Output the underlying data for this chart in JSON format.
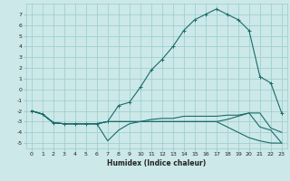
{
  "xlabel": "Humidex (Indice chaleur)",
  "bg_color": "#cce8e8",
  "grid_color": "#99cccc",
  "line_color": "#1a6b6b",
  "xlim": [
    -0.5,
    23.5
  ],
  "ylim": [
    -5.5,
    8.0
  ],
  "xticks": [
    0,
    1,
    2,
    3,
    4,
    5,
    6,
    7,
    8,
    9,
    10,
    11,
    12,
    13,
    14,
    15,
    16,
    17,
    18,
    19,
    20,
    21,
    22,
    23
  ],
  "yticks": [
    -5,
    -4,
    -3,
    -2,
    -1,
    0,
    1,
    2,
    3,
    4,
    5,
    6,
    7
  ],
  "series1_x": [
    0,
    1,
    2,
    3,
    4,
    5,
    6,
    7,
    8,
    9,
    10,
    11,
    12,
    13,
    14,
    15,
    16,
    17,
    18,
    19,
    20,
    21,
    22,
    23
  ],
  "series1_y": [
    -2.0,
    -2.3,
    -3.1,
    -3.2,
    -3.2,
    -3.2,
    -3.2,
    -3.0,
    -1.5,
    -1.2,
    0.2,
    1.8,
    2.8,
    4.0,
    5.5,
    6.5,
    7.0,
    7.5,
    7.0,
    6.5,
    5.5,
    1.2,
    0.6,
    -2.2
  ],
  "series2_x": [
    0,
    1,
    2,
    3,
    4,
    5,
    6,
    7,
    8,
    9,
    10,
    11,
    12,
    13,
    14,
    15,
    16,
    17,
    18,
    19,
    20,
    21,
    22,
    23
  ],
  "series2_y": [
    -2.0,
    -2.3,
    -3.1,
    -3.2,
    -3.2,
    -3.2,
    -3.2,
    -4.8,
    -3.8,
    -3.2,
    -3.0,
    -2.8,
    -2.7,
    -2.7,
    -2.5,
    -2.5,
    -2.5,
    -2.5,
    -2.4,
    -2.4,
    -2.2,
    -2.2,
    -3.6,
    -4.0
  ],
  "series3_x": [
    0,
    1,
    2,
    3,
    4,
    5,
    6,
    7,
    8,
    9,
    10,
    11,
    12,
    13,
    14,
    15,
    16,
    17,
    18,
    19,
    20,
    21,
    22,
    23
  ],
  "series3_y": [
    -2.0,
    -2.3,
    -3.1,
    -3.2,
    -3.2,
    -3.2,
    -3.2,
    -3.0,
    -3.0,
    -3.0,
    -3.0,
    -3.0,
    -3.0,
    -3.0,
    -3.0,
    -3.0,
    -3.0,
    -3.0,
    -2.8,
    -2.5,
    -2.2,
    -3.5,
    -3.8,
    -5.0
  ],
  "series4_x": [
    0,
    1,
    2,
    3,
    4,
    5,
    6,
    7,
    8,
    9,
    10,
    11,
    12,
    13,
    14,
    15,
    16,
    17,
    18,
    19,
    20,
    21,
    22,
    23
  ],
  "series4_y": [
    -2.0,
    -2.3,
    -3.1,
    -3.2,
    -3.2,
    -3.2,
    -3.2,
    -3.0,
    -3.0,
    -3.0,
    -3.0,
    -3.0,
    -3.0,
    -3.0,
    -3.0,
    -3.0,
    -3.0,
    -3.0,
    -3.5,
    -4.0,
    -4.5,
    -4.8,
    -5.0,
    -5.0
  ]
}
